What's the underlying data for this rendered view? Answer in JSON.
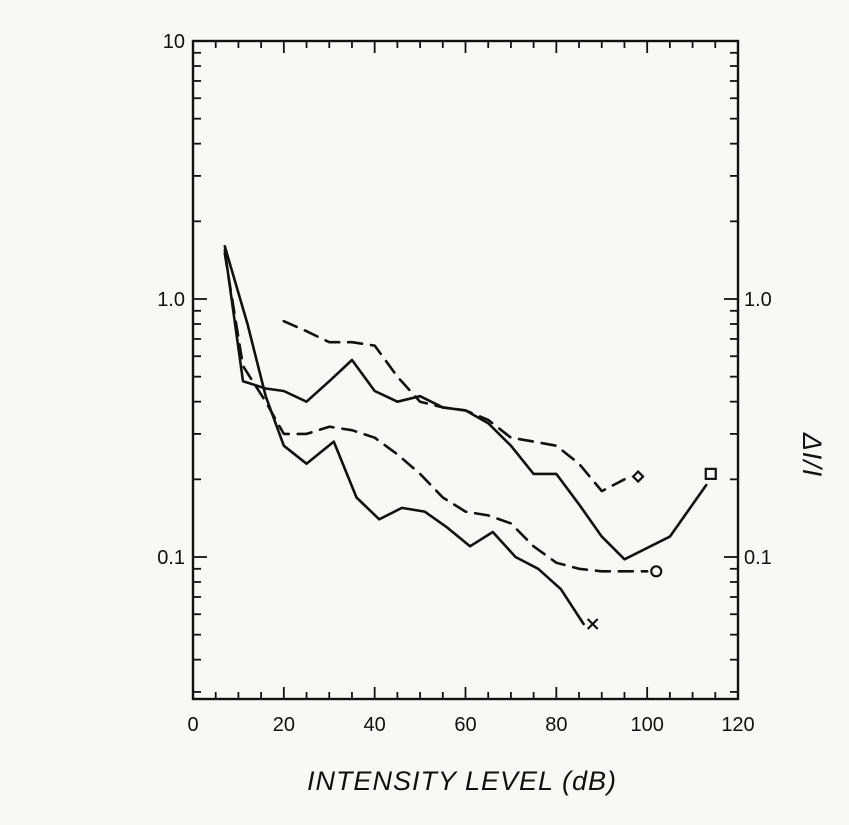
{
  "chart_data": {
    "type": "line",
    "xlabel": "INTENSITY LEVEL (dB)",
    "ylabel_right": "ΔI/I",
    "xlim": [
      0,
      120
    ],
    "ylim": [
      0.03,
      10
    ],
    "yscale": "log",
    "x_ticks": [
      0,
      20,
      40,
      60,
      80,
      100,
      120
    ],
    "x_tick_labels": [
      "0",
      "20",
      "40",
      "60",
      "80",
      "100",
      "120"
    ],
    "y_ticks_left": [
      0.1,
      1.0,
      10
    ],
    "y_tick_labels_left": [
      "0.1",
      "1.0",
      "10"
    ],
    "y_ticks_right": [
      0.1,
      1.0
    ],
    "y_tick_labels_right": [
      "0.1",
      "1.0"
    ],
    "grid": false,
    "series": [
      {
        "style": "solid",
        "marker": "x",
        "x": [
          7,
          12,
          16,
          20,
          25,
          31,
          36,
          41,
          46,
          51,
          56,
          61,
          66,
          71,
          76,
          81,
          86
        ],
        "y": [
          1.6,
          0.8,
          0.42,
          0.27,
          0.23,
          0.28,
          0.17,
          0.14,
          0.155,
          0.15,
          0.13,
          0.11,
          0.125,
          0.1,
          0.09,
          0.075,
          0.055
        ]
      },
      {
        "style": "dashed",
        "marker": "circle",
        "x": [
          7,
          11,
          16,
          20,
          25,
          30,
          35,
          40,
          45,
          50,
          55,
          60,
          65,
          70,
          75,
          80,
          85,
          90,
          95,
          100
        ],
        "y": [
          1.5,
          0.55,
          0.4,
          0.3,
          0.3,
          0.32,
          0.31,
          0.29,
          0.25,
          0.21,
          0.17,
          0.15,
          0.145,
          0.135,
          0.11,
          0.095,
          0.09,
          0.088,
          0.088,
          0.088
        ]
      },
      {
        "style": "dashed",
        "marker": "diamond",
        "x": [
          20,
          25,
          30,
          35,
          40,
          45,
          50,
          55,
          60,
          65,
          70,
          75,
          80,
          85,
          90,
          95
        ],
        "y": [
          0.82,
          0.75,
          0.68,
          0.68,
          0.66,
          0.5,
          0.4,
          0.38,
          0.37,
          0.34,
          0.29,
          0.28,
          0.27,
          0.23,
          0.18,
          0.2
        ]
      },
      {
        "style": "solid",
        "marker": "square",
        "x": [
          7,
          11,
          16,
          20,
          25,
          30,
          35,
          40,
          45,
          50,
          55,
          60,
          65,
          70,
          75,
          80,
          85,
          90,
          95,
          105,
          113
        ],
        "y": [
          1.55,
          0.48,
          0.45,
          0.44,
          0.4,
          0.48,
          0.58,
          0.44,
          0.4,
          0.42,
          0.38,
          0.37,
          0.33,
          0.27,
          0.21,
          0.21,
          0.16,
          0.12,
          0.098,
          0.12,
          0.19
        ]
      }
    ],
    "markers": [
      {
        "symbol": "x",
        "x": 88,
        "y": 0.055
      },
      {
        "symbol": "circle",
        "x": 102,
        "y": 0.088
      },
      {
        "symbol": "diamond",
        "x": 98,
        "y": 0.205
      },
      {
        "symbol": "square",
        "x": 114,
        "y": 0.21
      }
    ]
  }
}
